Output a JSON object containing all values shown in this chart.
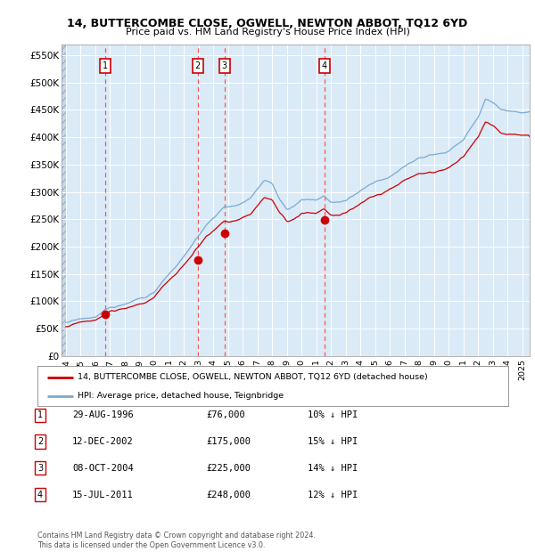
{
  "title": "14, BUTTERCOMBE CLOSE, OGWELL, NEWTON ABBOT, TQ12 6YD",
  "subtitle": "Price paid vs. HM Land Registry's House Price Index (HPI)",
  "legend_line1": "14, BUTTERCOMBE CLOSE, OGWELL, NEWTON ABBOT, TQ12 6YD (detached house)",
  "legend_line2": "HPI: Average price, detached house, Teignbridge",
  "hpi_color": "#7aaad0",
  "price_color": "#cc0000",
  "sale_dot_color": "#cc0000",
  "background_color": "#daeaf7",
  "grid_color": "#ffffff",
  "dashed_line_color": "#ff5555",
  "sales": [
    {
      "label": "1",
      "date_x": 1996.66,
      "price": 76000
    },
    {
      "label": "2",
      "date_x": 2002.95,
      "price": 175000
    },
    {
      "label": "3",
      "date_x": 2004.77,
      "price": 225000
    },
    {
      "label": "4",
      "date_x": 2011.54,
      "price": 248000
    }
  ],
  "table_rows": [
    {
      "label": "1",
      "date": "29-AUG-1996",
      "price": "£76,000",
      "hpi_diff": "10% ↓ HPI"
    },
    {
      "label": "2",
      "date": "12-DEC-2002",
      "price": "£175,000",
      "hpi_diff": "15% ↓ HPI"
    },
    {
      "label": "3",
      "date": "08-OCT-2004",
      "price": "£225,000",
      "hpi_diff": "14% ↓ HPI"
    },
    {
      "label": "4",
      "date": "15-JUL-2011",
      "price": "£248,000",
      "hpi_diff": "12% ↓ HPI"
    }
  ],
  "footer": "Contains HM Land Registry data © Crown copyright and database right 2024.\nThis data is licensed under the Open Government Licence v3.0.",
  "ylim": [
    0,
    570000
  ],
  "xlim_start": 1993.7,
  "xlim_end": 2025.5,
  "yticks": [
    0,
    50000,
    100000,
    150000,
    200000,
    250000,
    300000,
    350000,
    400000,
    450000,
    500000,
    550000
  ],
  "ytick_labels": [
    "£0",
    "£50K",
    "£100K",
    "£150K",
    "£200K",
    "£250K",
    "£300K",
    "£350K",
    "£400K",
    "£450K",
    "£500K",
    "£550K"
  ],
  "xticks": [
    1994,
    1995,
    1996,
    1997,
    1998,
    1999,
    2000,
    2001,
    2002,
    2003,
    2004,
    2005,
    2006,
    2007,
    2008,
    2009,
    2010,
    2011,
    2012,
    2013,
    2014,
    2015,
    2016,
    2017,
    2018,
    2019,
    2020,
    2021,
    2022,
    2023,
    2024,
    2025
  ]
}
